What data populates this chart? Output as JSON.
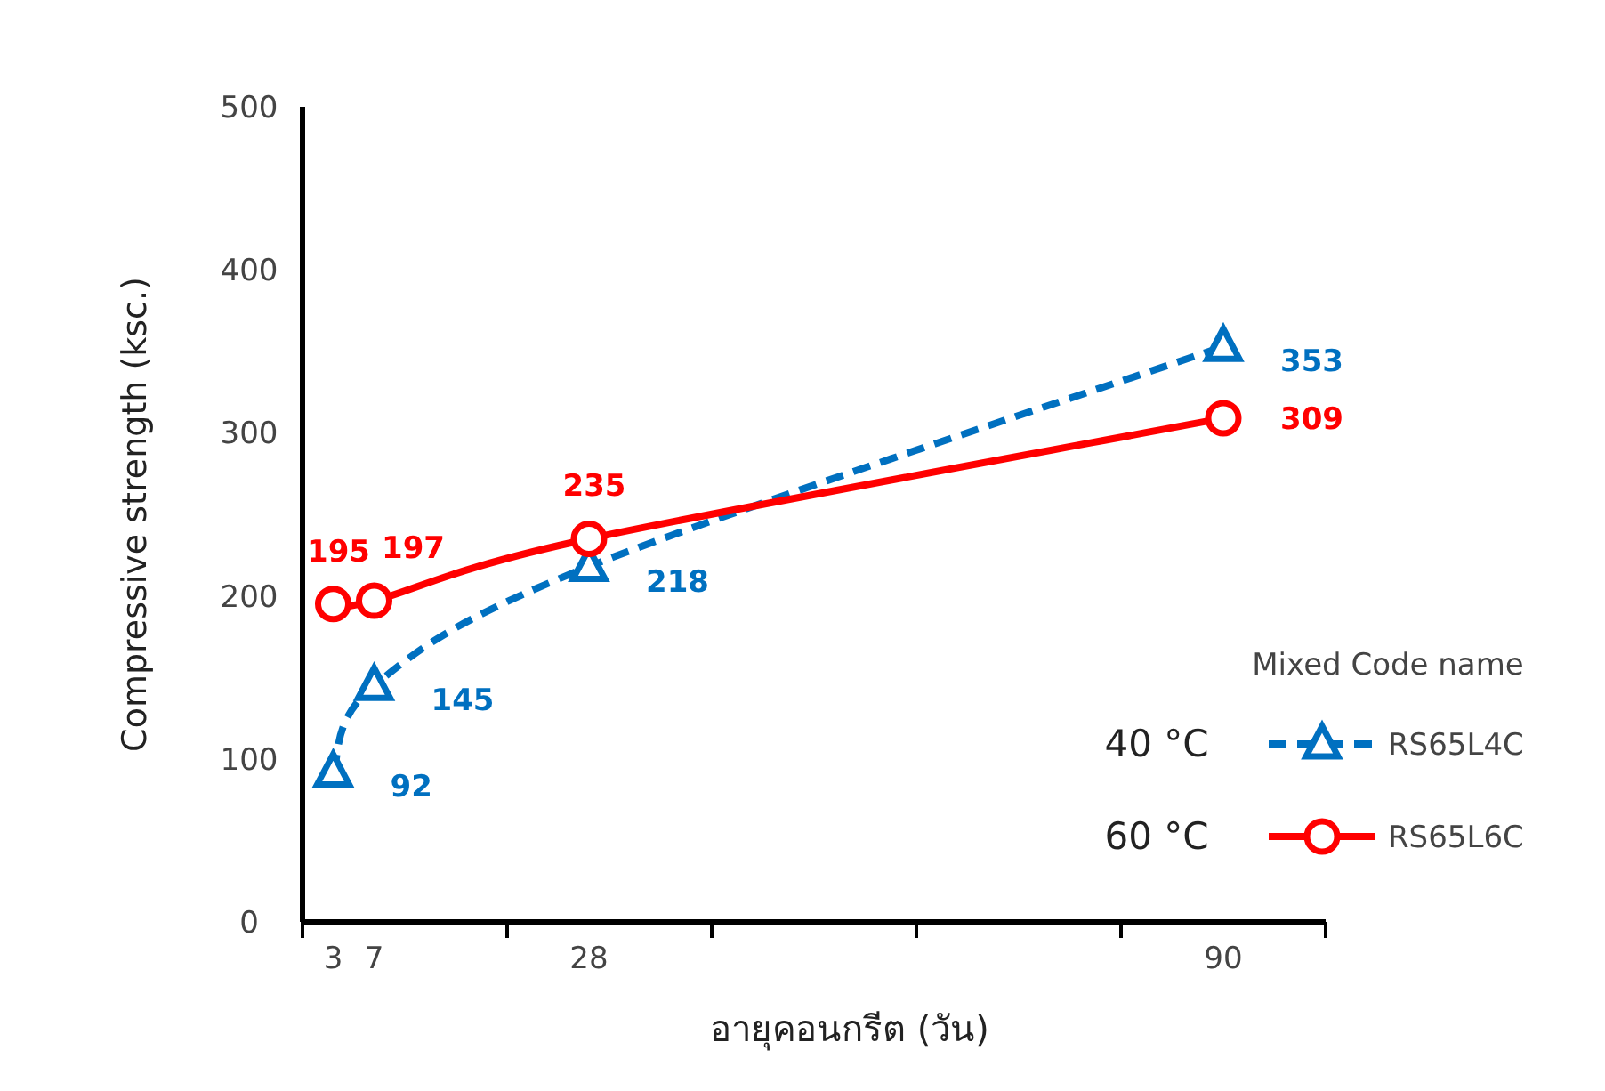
{
  "chart_data": {
    "type": "line",
    "xlabel": "อายุคอนกรีต (วัน)",
    "ylabel": "Compressive strength (ksc.)",
    "legend_title": "Mixed Code name",
    "x": [
      3,
      7,
      28,
      90
    ],
    "series": [
      {
        "name": "RS65L4C",
        "color": "#0070c0",
        "values": [
          92,
          145,
          218,
          353
        ],
        "marker": "triangle",
        "line_style": "dashed"
      },
      {
        "name": "RS65L6C",
        "color": "#ff0000",
        "values": [
          195,
          197,
          235,
          309
        ],
        "marker": "circle",
        "line_style": "solid"
      }
    ],
    "xlim": [
      0,
      100
    ],
    "xticks": [
      {
        "value": 0,
        "label": null
      },
      {
        "value": 3,
        "label": "3"
      },
      {
        "value": 7,
        "label": "7"
      },
      {
        "value": 20,
        "label": null
      },
      {
        "value": 28,
        "label": "28"
      },
      {
        "value": 40,
        "label": null
      },
      {
        "value": 60,
        "label": null
      },
      {
        "value": 80,
        "label": null
      },
      {
        "value": 90,
        "label": "90"
      },
      {
        "value": 100,
        "label": null
      }
    ],
    "ylim": [
      0,
      500
    ],
    "yticks": [
      0,
      100,
      200,
      300,
      400,
      500
    ],
    "grid": false,
    "legend": "bottom right",
    "data_labels": true,
    "annotations": [
      "40 °C",
      "60 °C"
    ]
  }
}
